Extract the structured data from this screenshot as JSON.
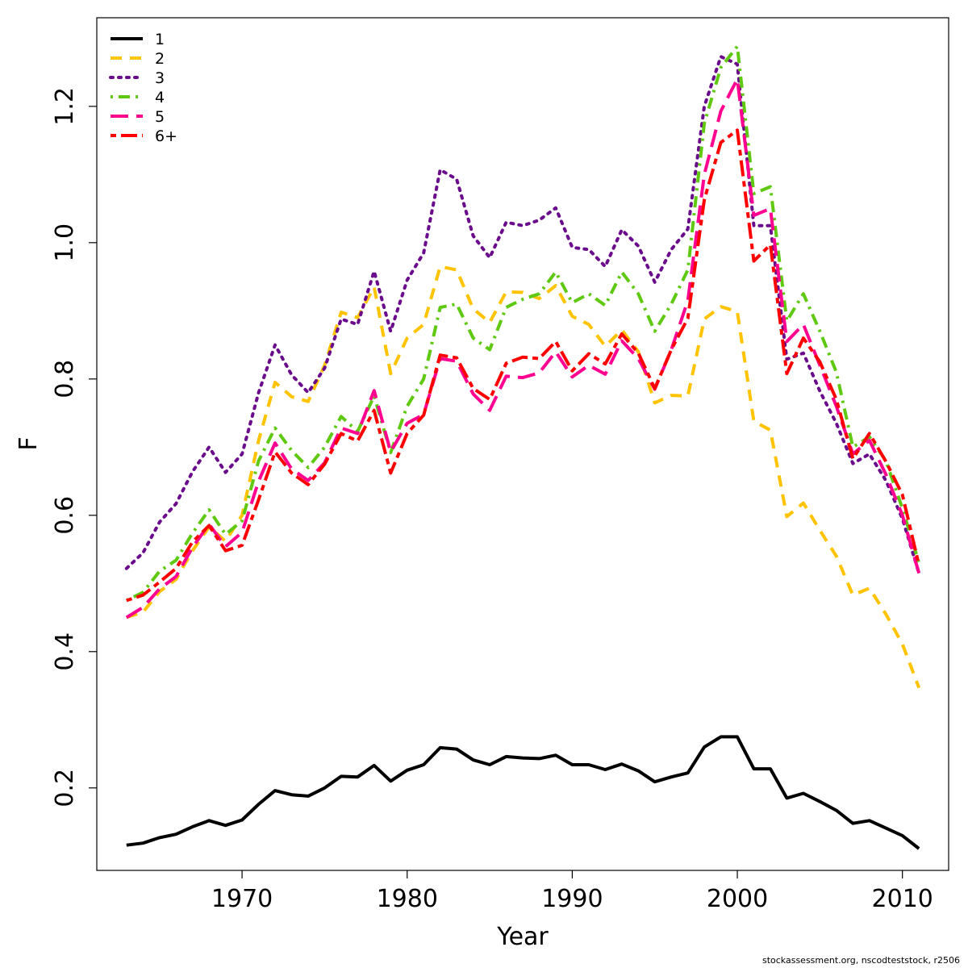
{
  "chart_data": {
    "type": "line",
    "xlabel": "Year",
    "ylabel": "F",
    "xlim": [
      1961.2,
      2012.8
    ],
    "ylim": [
      0.079,
      1.33
    ],
    "x_ticks": [
      1970,
      1980,
      1990,
      2000,
      2010
    ],
    "y_ticks": [
      0.2,
      0.4,
      0.6,
      0.8,
      1.0,
      1.2
    ],
    "y_tick_labels": [
      "0.2",
      "0.4",
      "0.6",
      "0.8",
      "1.0",
      "1.2"
    ],
    "legend_position": "top-left",
    "footer": "stockassessment.org, nscodteststock, r2506",
    "x": [
      1963,
      1964,
      1965,
      1966,
      1967,
      1968,
      1969,
      1970,
      1971,
      1972,
      1973,
      1974,
      1975,
      1976,
      1977,
      1978,
      1979,
      1980,
      1981,
      1982,
      1983,
      1984,
      1985,
      1986,
      1987,
      1988,
      1989,
      1990,
      1991,
      1992,
      1993,
      1994,
      1995,
      1996,
      1997,
      1998,
      1999,
      2000,
      2001,
      2002,
      2003,
      2004,
      2005,
      2006,
      2007,
      2008,
      2009,
      2010,
      2011
    ],
    "series": [
      {
        "name": "1",
        "color": "#000000",
        "dash": "solid",
        "values": [
          0.116,
          0.119,
          0.127,
          0.132,
          0.143,
          0.152,
          0.145,
          0.153,
          0.176,
          0.196,
          0.19,
          0.188,
          0.2,
          0.217,
          0.216,
          0.233,
          0.21,
          0.226,
          0.234,
          0.259,
          0.257,
          0.241,
          0.234,
          0.246,
          0.244,
          0.243,
          0.248,
          0.234,
          0.234,
          0.227,
          0.235,
          0.225,
          0.209,
          0.216,
          0.222,
          0.26,
          0.275,
          0.275,
          0.228,
          0.228,
          0.185,
          0.192,
          0.18,
          0.167,
          0.148,
          0.152,
          0.141,
          0.13,
          0.111
        ]
      },
      {
        "name": "2",
        "color": "#FFC300",
        "dash": "dashed",
        "values": [
          0.45,
          0.458,
          0.488,
          0.506,
          0.548,
          0.583,
          0.562,
          0.6,
          0.71,
          0.795,
          0.774,
          0.767,
          0.82,
          0.898,
          0.89,
          0.935,
          0.808,
          0.86,
          0.88,
          0.965,
          0.96,
          0.903,
          0.883,
          0.928,
          0.927,
          0.918,
          0.937,
          0.892,
          0.88,
          0.848,
          0.872,
          0.84,
          0.765,
          0.776,
          0.775,
          0.888,
          0.906,
          0.899,
          0.738,
          0.725,
          0.598,
          0.618,
          0.578,
          0.54,
          0.483,
          0.493,
          0.455,
          0.411,
          0.347
        ]
      },
      {
        "name": "3",
        "color": "#6A0B8B",
        "dash": "dotted",
        "values": [
          0.522,
          0.545,
          0.59,
          0.617,
          0.664,
          0.7,
          0.663,
          0.69,
          0.78,
          0.85,
          0.806,
          0.78,
          0.816,
          0.888,
          0.88,
          0.958,
          0.87,
          0.945,
          0.985,
          1.107,
          1.093,
          1.01,
          0.978,
          1.03,
          1.025,
          1.033,
          1.051,
          0.993,
          0.99,
          0.965,
          1.019,
          0.995,
          0.942,
          0.99,
          1.02,
          1.2,
          1.273,
          1.262,
          1.025,
          1.025,
          0.829,
          0.838,
          0.782,
          0.735,
          0.676,
          0.69,
          0.651,
          0.595,
          0.515
        ]
      },
      {
        "name": "4",
        "color": "#5FC911",
        "dash": "dashdot",
        "values": [
          0.475,
          0.487,
          0.518,
          0.534,
          0.574,
          0.608,
          0.572,
          0.592,
          0.68,
          0.728,
          0.695,
          0.67,
          0.7,
          0.745,
          0.723,
          0.775,
          0.692,
          0.76,
          0.8,
          0.905,
          0.91,
          0.86,
          0.843,
          0.905,
          0.917,
          0.925,
          0.957,
          0.912,
          0.925,
          0.908,
          0.957,
          0.925,
          0.87,
          0.91,
          0.96,
          1.175,
          1.257,
          1.288,
          1.072,
          1.082,
          0.885,
          0.925,
          0.87,
          0.81,
          0.7,
          0.715,
          0.68,
          0.61,
          0.53
        ]
      },
      {
        "name": "5",
        "color": "#FF0090",
        "dash": "longdash",
        "values": [
          0.45,
          0.465,
          0.492,
          0.51,
          0.553,
          0.587,
          0.554,
          0.575,
          0.65,
          0.706,
          0.668,
          0.651,
          0.677,
          0.728,
          0.72,
          0.783,
          0.693,
          0.735,
          0.748,
          0.83,
          0.826,
          0.778,
          0.754,
          0.804,
          0.802,
          0.809,
          0.84,
          0.803,
          0.82,
          0.807,
          0.856,
          0.83,
          0.785,
          0.843,
          0.915,
          1.1,
          1.193,
          1.24,
          1.04,
          1.05,
          0.855,
          0.88,
          0.82,
          0.76,
          0.69,
          0.71,
          0.66,
          0.6,
          0.515
        ]
      },
      {
        "name": "6+",
        "color": "#FF0000",
        "dash": "twodash",
        "values": [
          0.475,
          0.483,
          0.502,
          0.522,
          0.561,
          0.585,
          0.548,
          0.556,
          0.623,
          0.693,
          0.662,
          0.645,
          0.675,
          0.72,
          0.709,
          0.754,
          0.662,
          0.72,
          0.747,
          0.835,
          0.831,
          0.786,
          0.77,
          0.823,
          0.832,
          0.83,
          0.855,
          0.812,
          0.837,
          0.822,
          0.866,
          0.838,
          0.786,
          0.843,
          0.889,
          1.063,
          1.147,
          1.165,
          0.973,
          0.997,
          0.808,
          0.86,
          0.825,
          0.77,
          0.683,
          0.72,
          0.679,
          0.63,
          0.527
        ]
      }
    ]
  }
}
